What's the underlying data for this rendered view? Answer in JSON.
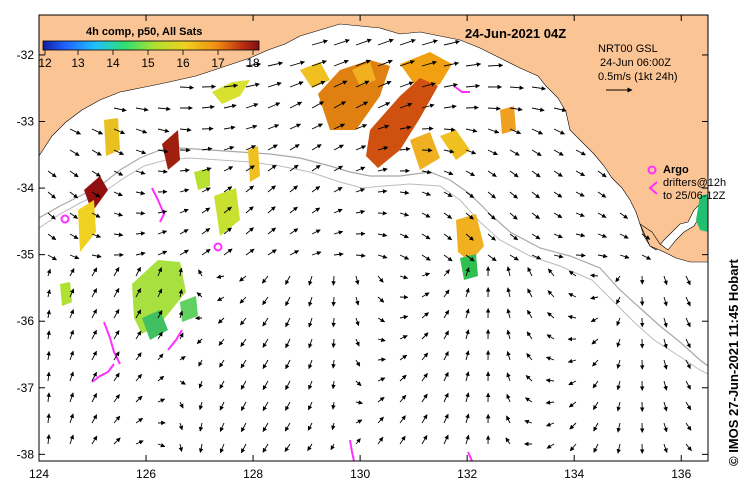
{
  "header": {
    "date_title": "24-Jun-2021 04Z",
    "colorbar_title": "4h comp, p50, All Sats",
    "colorbar_ticks": [
      "12",
      "13",
      "14",
      "15",
      "16",
      "17",
      "18"
    ],
    "colorbar_colors": [
      "#1020a0",
      "#2060ff",
      "#20c0ff",
      "#30e070",
      "#b0e030",
      "#f0d020",
      "#f09010",
      "#c03010",
      "#801010"
    ]
  },
  "current_legend": {
    "line1": "NRT00 GSL",
    "line2": "24-Jun 06:00Z",
    "line3": "0.5m/s (1kt 24h)"
  },
  "argo_legend": {
    "argo_label": "Argo",
    "drifters_line1": "drifters@12h",
    "drifters_line2": "to 25/06-12Z"
  },
  "credit": "© IMOS 27-Jun-2021 11:45 Hobart",
  "axes": {
    "lon_ticks": [
      "124",
      "126",
      "128",
      "130",
      "132",
      "134",
      "136"
    ],
    "lat_ticks": [
      "-32",
      "-33",
      "-34",
      "-35",
      "-36",
      "-37",
      "-38"
    ],
    "lon_range": [
      124,
      136.5
    ],
    "lat_range": [
      -38.1,
      -31.4
    ]
  },
  "colors": {
    "land": "#fbc494",
    "ocean": "#ffffff",
    "argo": "#ff30ff",
    "contour": "#a8a8a8",
    "arrow": "#000000"
  }
}
